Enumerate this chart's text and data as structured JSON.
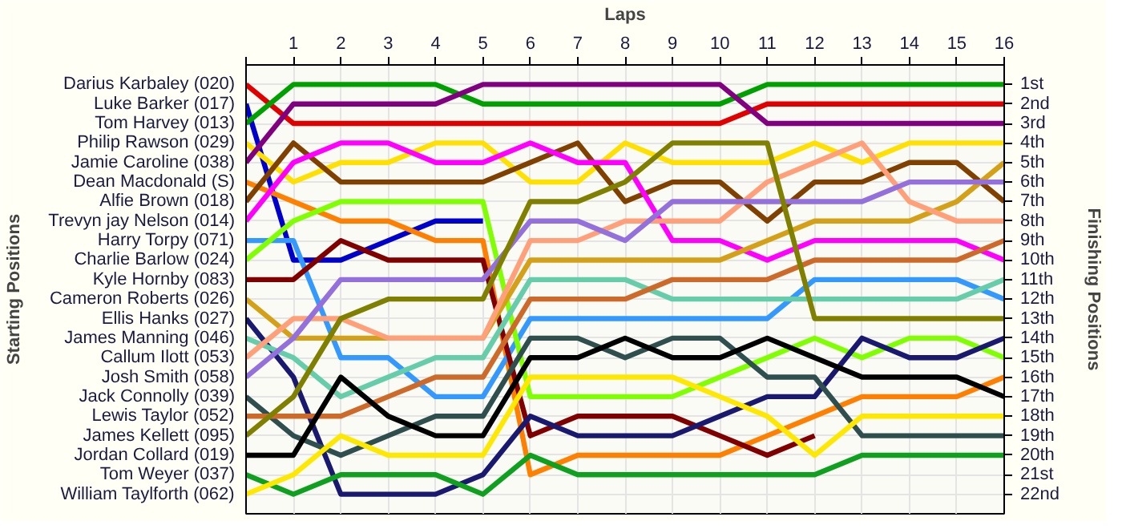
{
  "chart_data": {
    "type": "line",
    "xlabel": "Laps",
    "ylabel": "Finishing Positions",
    "annotations": [
      "Starting Positions"
    ],
    "x": [
      0,
      1,
      2,
      3,
      4,
      5,
      6,
      7,
      8,
      9,
      10,
      11,
      12,
      13,
      14,
      15,
      16
    ],
    "xlim": [
      0,
      16
    ],
    "xticks": [
      {
        "value": 0,
        "label": null
      },
      1,
      2,
      3,
      4,
      5,
      6,
      7,
      8,
      9,
      10,
      11,
      12,
      13,
      14,
      15,
      16
    ],
    "ylim": [
      23,
      0
    ],
    "yticks": [
      {
        "value": 1,
        "label": "1st"
      },
      {
        "value": 2,
        "label": "2nd"
      },
      {
        "value": 3,
        "label": "3rd"
      },
      {
        "value": 4,
        "label": "4th"
      },
      {
        "value": 5,
        "label": "5th"
      },
      {
        "value": 6,
        "label": "6th"
      },
      {
        "value": 7,
        "label": "7th"
      },
      {
        "value": 8,
        "label": "8th"
      },
      {
        "value": 9,
        "label": "9th"
      },
      {
        "value": 10,
        "label": "10th"
      },
      {
        "value": 11,
        "label": "11th"
      },
      {
        "value": 12,
        "label": "12th"
      },
      {
        "value": 13,
        "label": "13th"
      },
      {
        "value": 14,
        "label": "14th"
      },
      {
        "value": 15,
        "label": "15th"
      },
      {
        "value": 16,
        "label": "16th"
      },
      {
        "value": 17,
        "label": "17th"
      },
      {
        "value": 18,
        "label": "18th"
      },
      {
        "value": 19,
        "label": "19th"
      },
      {
        "value": 20,
        "label": "20th"
      },
      {
        "value": 21,
        "label": "21st"
      },
      {
        "value": 22,
        "label": "22nd"
      }
    ],
    "grid": true,
    "legend": "left",
    "marker": "none",
    "line_style": "solid",
    "series": [
      {
        "name": "Darius Karbaley (020)",
        "color": "#e00000",
        "values": [
          1,
          3,
          3,
          3,
          3,
          3,
          3,
          3,
          3,
          3,
          3,
          2,
          2,
          2,
          2,
          2,
          2
        ]
      },
      {
        "name": "Luke Barker (017)",
        "color": "#0000cc",
        "values": [
          2,
          10,
          10,
          9,
          8,
          8,
          null,
          null,
          null,
          null,
          null,
          null,
          null,
          null,
          null,
          null,
          null
        ]
      },
      {
        "name": "Tom Harvey (013)",
        "color": "#00a000",
        "values": [
          3,
          1,
          1,
          1,
          1,
          2,
          2,
          2,
          2,
          2,
          2,
          1,
          1,
          1,
          1,
          1,
          1
        ]
      },
      {
        "name": "Philip Rawson (029)",
        "color": "#ffe000",
        "values": [
          4,
          6,
          5,
          5,
          4,
          4,
          6,
          6,
          4,
          5,
          5,
          5,
          4,
          5,
          4,
          4,
          4
        ]
      },
      {
        "name": "Jamie Caroline (038)",
        "color": "#800080",
        "values": [
          5,
          2,
          2,
          2,
          2,
          1,
          1,
          1,
          1,
          1,
          1,
          3,
          3,
          3,
          3,
          3,
          3
        ]
      },
      {
        "name": "Dean Macdonald (S)",
        "color": "#ff8000",
        "values": [
          6,
          7,
          8,
          8,
          9,
          9,
          21,
          20,
          20,
          20,
          20,
          19,
          18,
          17,
          17,
          17,
          16
        ]
      },
      {
        "name": "Alfie Brown (018)",
        "color": "#804000",
        "values": [
          7,
          4,
          6,
          6,
          6,
          6,
          5,
          4,
          7,
          6,
          6,
          8,
          6,
          6,
          5,
          5,
          7
        ]
      },
      {
        "name": "Trevyn jay Nelson (014)",
        "color": "#ff00ff",
        "values": [
          8,
          5,
          4,
          4,
          5,
          5,
          4,
          5,
          5,
          9,
          9,
          10,
          9,
          9,
          9,
          9,
          10
        ]
      },
      {
        "name": "Harry Torpy (071)",
        "color": "#3399ff",
        "values": [
          9,
          9,
          15,
          15,
          17,
          17,
          13,
          13,
          13,
          13,
          13,
          13,
          11,
          11,
          11,
          11,
          12
        ]
      },
      {
        "name": "Charlie Barlow (024)",
        "color": "#80ff00",
        "values": [
          10,
          8,
          7,
          7,
          7,
          7,
          17,
          17,
          17,
          17,
          16,
          15,
          14,
          15,
          14,
          14,
          15
        ]
      },
      {
        "name": "Kyle Hornby (083)",
        "color": "#800000",
        "values": [
          11,
          11,
          9,
          10,
          10,
          10,
          19,
          18,
          18,
          18,
          19,
          20,
          19,
          null,
          null,
          null,
          null
        ]
      },
      {
        "name": "Cameron Roberts (026)",
        "color": "#d4a017",
        "values": [
          12,
          14,
          14,
          14,
          14,
          14,
          10,
          10,
          10,
          10,
          10,
          9,
          8,
          8,
          8,
          7,
          5
        ]
      },
      {
        "name": "Ellis Hanks (027)",
        "color": "#191970",
        "values": [
          13,
          16,
          22,
          22,
          22,
          21,
          18,
          19,
          19,
          19,
          18,
          17,
          17,
          14,
          15,
          15,
          14
        ]
      },
      {
        "name": "James Manning (046)",
        "color": "#66cdaa",
        "values": [
          14,
          15,
          17,
          16,
          15,
          15,
          11,
          11,
          11,
          12,
          12,
          12,
          12,
          12,
          12,
          12,
          11
        ]
      },
      {
        "name": "Callum Ilott (053)",
        "color": "#ffa07a",
        "values": [
          15,
          13,
          13,
          14,
          14,
          14,
          9,
          9,
          8,
          8,
          8,
          6,
          5,
          4,
          7,
          8,
          8
        ]
      },
      {
        "name": "Josh Smith (058)",
        "color": "#9370db",
        "values": [
          16,
          14,
          11,
          11,
          11,
          11,
          8,
          8,
          9,
          7,
          7,
          7,
          7,
          7,
          6,
          6,
          6
        ]
      },
      {
        "name": "Jack Connolly (039)",
        "color": "#2f4f4f",
        "values": [
          17,
          19,
          20,
          19,
          18,
          18,
          14,
          14,
          15,
          14,
          14,
          16,
          16,
          19,
          19,
          19,
          19
        ]
      },
      {
        "name": "Lewis Taylor (052)",
        "color": "#cd6a2a",
        "values": [
          18,
          18,
          18,
          17,
          16,
          16,
          12,
          12,
          12,
          11,
          11,
          11,
          10,
          10,
          10,
          10,
          9
        ]
      },
      {
        "name": "James Kellett (095)",
        "color": "#808000",
        "values": [
          19,
          17,
          13,
          12,
          12,
          12,
          7,
          7,
          6,
          4,
          4,
          4,
          13,
          13,
          13,
          13,
          13
        ]
      },
      {
        "name": "Jordan Collard (019)",
        "color": "#000000",
        "values": [
          20,
          20,
          16,
          18,
          19,
          19,
          15,
          15,
          14,
          15,
          15,
          14,
          15,
          16,
          16,
          16,
          17
        ]
      },
      {
        "name": "Tom Weyer (037)",
        "color": "#10a020",
        "values": [
          21,
          22,
          21,
          21,
          21,
          22,
          20,
          21,
          21,
          21,
          21,
          21,
          21,
          20,
          20,
          20,
          20
        ]
      },
      {
        "name": "William Taylforth (062)",
        "color": "#ffe800",
        "values": [
          22,
          21,
          19,
          20,
          20,
          20,
          16,
          16,
          16,
          16,
          17,
          18,
          20,
          18,
          18,
          18,
          18
        ]
      }
    ]
  }
}
